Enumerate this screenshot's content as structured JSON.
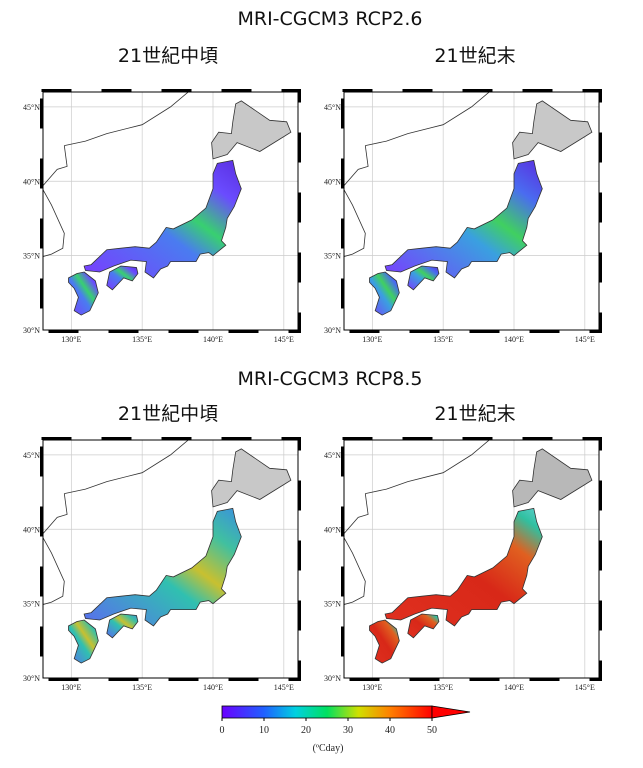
{
  "sections": [
    {
      "title": "MRI-CGCM3  RCP2.6",
      "panels": [
        {
          "title": "21世紀中頃"
        },
        {
          "title": "21世紀末"
        }
      ]
    },
    {
      "title": "MRI-CGCM3  RCP8.5",
      "panels": [
        {
          "title": "21世紀中頃"
        },
        {
          "title": "21世紀末"
        }
      ]
    }
  ],
  "axes": {
    "lat_ticks": [
      {
        "value": 30,
        "label": "30°N"
      },
      {
        "value": 35,
        "label": "35°N"
      },
      {
        "value": 40,
        "label": "40°N"
      },
      {
        "value": 45,
        "label": "45°N"
      }
    ],
    "lon_ticks": [
      {
        "value": 130,
        "label": "130°E"
      },
      {
        "value": 135,
        "label": "135°E"
      },
      {
        "value": 140,
        "label": "140°E"
      },
      {
        "value": 145,
        "label": "145°E"
      }
    ]
  },
  "colorbar": {
    "ticks": [
      0,
      10,
      20,
      30,
      40,
      50
    ],
    "label": "(ºCday)"
  }
}
